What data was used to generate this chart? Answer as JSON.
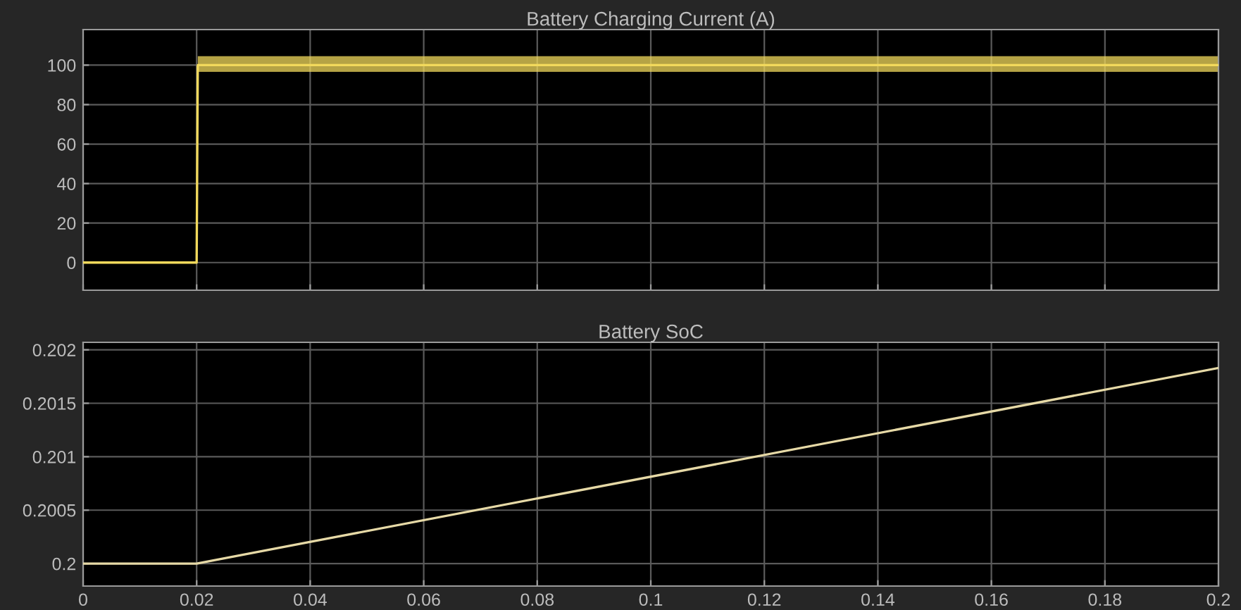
{
  "chart_data": [
    {
      "type": "line",
      "title": "Battery Charging Current (A)",
      "x": [
        0,
        0.02,
        0.0202,
        0.2
      ],
      "series": [
        {
          "color": "#f2d95c",
          "values": [
            0,
            0,
            100,
            100
          ],
          "lower": [
            0,
            0,
            96.6,
            96.6
          ],
          "upper": [
            0,
            0,
            104.5,
            104.5
          ]
        }
      ],
      "xlim": [
        0,
        0.2
      ],
      "xticks": [
        {
          "value": 0,
          "label": null
        },
        {
          "value": 0.02,
          "label": null
        },
        {
          "value": 0.04,
          "label": null
        },
        {
          "value": 0.06,
          "label": null
        },
        {
          "value": 0.08,
          "label": null
        },
        {
          "value": 0.1,
          "label": null
        },
        {
          "value": 0.12,
          "label": null
        },
        {
          "value": 0.14,
          "label": null
        },
        {
          "value": 0.16,
          "label": null
        },
        {
          "value": 0.18,
          "label": null
        },
        {
          "value": 0.2,
          "label": null
        }
      ],
      "ylim": [
        -14,
        118
      ],
      "yticks": [
        0,
        20,
        40,
        60,
        80,
        100
      ],
      "grid": true,
      "tick_labels": "y"
    },
    {
      "type": "line",
      "title": "Battery SoC",
      "x": [
        0,
        0.02,
        0.2
      ],
      "series": [
        {
          "color": "#e6d9a6",
          "values": [
            0.2,
            0.2,
            0.20183
          ]
        }
      ],
      "xlim": [
        0,
        0.2
      ],
      "xticks": [
        0,
        0.02,
        0.04,
        0.06,
        0.08,
        0.1,
        0.12,
        0.14,
        0.16,
        0.18,
        0.2
      ],
      "ylim": [
        0.19979,
        0.20207
      ],
      "yticks": [
        0.2,
        0.2005,
        0.201,
        0.2015,
        0.202
      ],
      "grid": true
    }
  ]
}
